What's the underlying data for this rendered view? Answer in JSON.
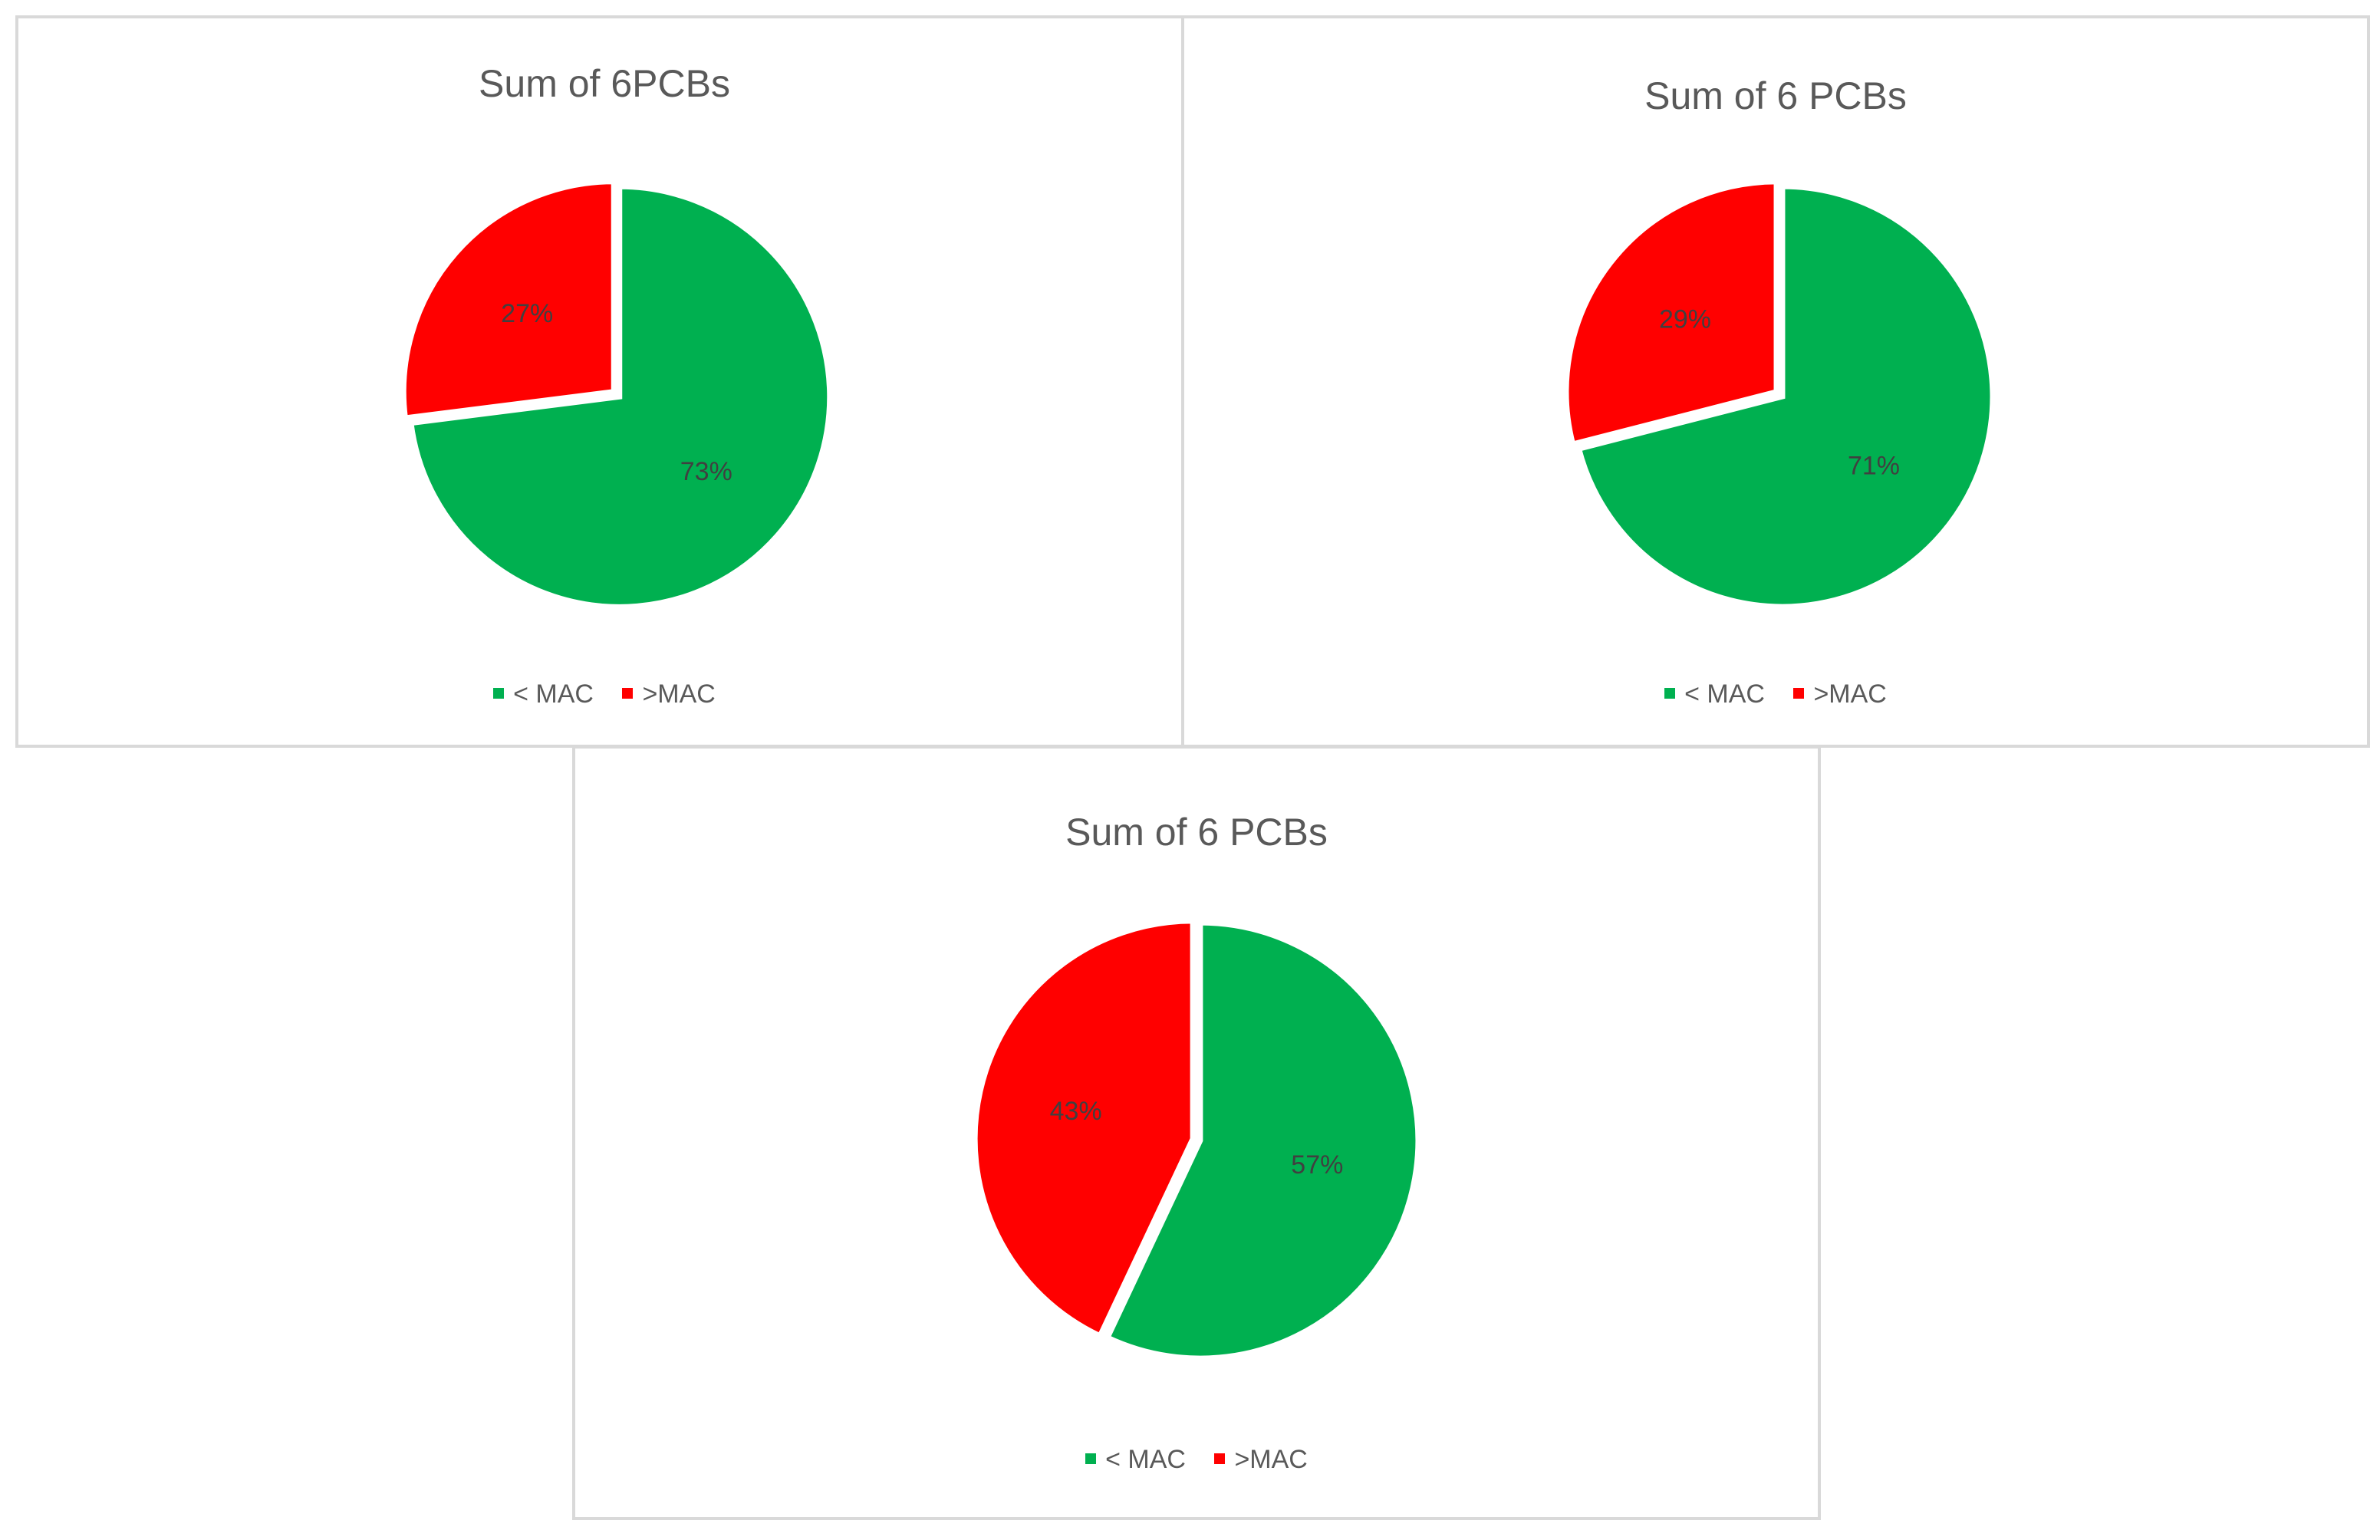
{
  "chart_data": [
    {
      "type": "pie",
      "title": "Sum of 6PCBs",
      "categories": [
        "< MAC",
        ">MAC"
      ],
      "values": [
        73,
        27
      ],
      "data_labels": [
        "73%",
        "27%"
      ],
      "colors": [
        "#00b050",
        "#ff0000"
      ],
      "legend_position": "bottom"
    },
    {
      "type": "pie",
      "title": "Sum of 6 PCBs",
      "categories": [
        "< MAC",
        ">MAC"
      ],
      "values": [
        71,
        29
      ],
      "data_labels": [
        "71%",
        "29%"
      ],
      "colors": [
        "#00b050",
        "#ff0000"
      ],
      "legend_position": "bottom"
    },
    {
      "type": "pie",
      "title": "Sum of 6 PCBs",
      "categories": [
        "< MAC",
        ">MAC"
      ],
      "values": [
        57,
        43
      ],
      "data_labels": [
        "57%",
        "43%"
      ],
      "colors": [
        "#00b050",
        "#ff0000"
      ],
      "legend_position": "bottom"
    }
  ]
}
